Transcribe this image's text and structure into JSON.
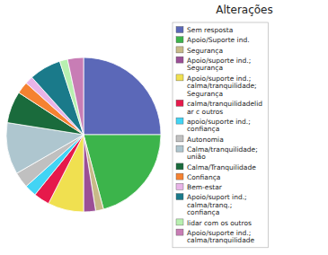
{
  "chart_data": {
    "type": "pie",
    "title": "Alterações",
    "categories": [
      "Sem resposta",
      "Apoio/Suporte ind.",
      "Segurança",
      "Apoio/suporte ind.;\nSegurança",
      "Apoio/suporte ind.;\ncalma/tranquilidade;\nSegurança",
      "calma/tranquilidadelid\nar c outros",
      "apoio/suporte ind.;\nconfiança",
      "Autonomia",
      "Calma/tranquilidade;\nunião",
      "Calma/Tranquilidade",
      "Confiança",
      "Bem-estar",
      "Apoio/suport ind.;\ncalma/tranq.;\nconfiança",
      "lidar com os outros",
      "Apoio/suporte ind.;\ncalma/tranquilidade"
    ],
    "values": [
      30,
      25,
      2,
      3,
      9,
      4,
      3,
      4,
      13,
      8,
      3,
      2,
      8,
      2,
      4
    ],
    "colors": [
      "#5b68b8",
      "#3cb44b",
      "#c8ba88",
      "#9b4f96",
      "#f0e050",
      "#e6194b",
      "#42d4f4",
      "#c0c0c0",
      "#aec6cf",
      "#1a6b3c",
      "#f58231",
      "#e8b4e8",
      "#1a7a8a",
      "#b8f0b0",
      "#c87db5"
    ],
    "legend": "right"
  }
}
